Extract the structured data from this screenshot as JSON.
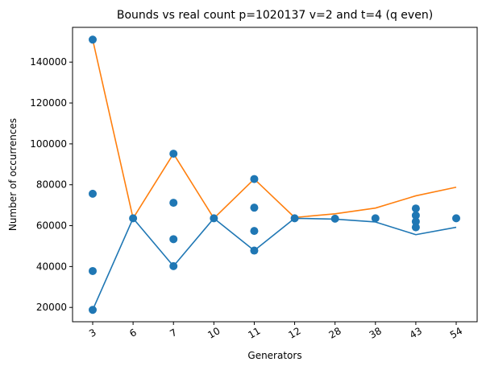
{
  "chart_data": {
    "type": "line",
    "title": "Bounds vs real count p=1020137 v=2 and t=4 (q even)",
    "xlabel": "Generators",
    "ylabel": "Number of occurrences",
    "categories": [
      "3",
      "6",
      "7",
      "10",
      "11",
      "12",
      "28",
      "38",
      "43",
      "54"
    ],
    "ylim": [
      13000,
      157000
    ],
    "yticks": [
      20000,
      40000,
      60000,
      80000,
      100000,
      120000,
      140000
    ],
    "grid": false,
    "legend": "none",
    "series": [
      {
        "role": "lower-bound",
        "color": "#1f77b4",
        "values": [
          18800,
          63600,
          40200,
          63600,
          47800,
          63600,
          63200,
          61800,
          55600,
          59200
        ]
      },
      {
        "role": "upper-bound",
        "color": "#ff7f0e",
        "values": [
          151000,
          63600,
          95200,
          63600,
          82800,
          64000,
          65800,
          68600,
          74600,
          78800
        ]
      }
    ],
    "scatter": {
      "color": "#1f77b4",
      "points": [
        {
          "x": "3",
          "y": 151000
        },
        {
          "x": "3",
          "y": 75600
        },
        {
          "x": "3",
          "y": 37800
        },
        {
          "x": "3",
          "y": 18800
        },
        {
          "x": "6",
          "y": 63600
        },
        {
          "x": "7",
          "y": 95200
        },
        {
          "x": "7",
          "y": 71200
        },
        {
          "x": "7",
          "y": 53400
        },
        {
          "x": "7",
          "y": 40200
        },
        {
          "x": "10",
          "y": 63600
        },
        {
          "x": "11",
          "y": 82800
        },
        {
          "x": "11",
          "y": 68800
        },
        {
          "x": "11",
          "y": 57400
        },
        {
          "x": "11",
          "y": 47800
        },
        {
          "x": "12",
          "y": 63600
        },
        {
          "x": "28",
          "y": 63400
        },
        {
          "x": "38",
          "y": 63600
        },
        {
          "x": "43",
          "y": 68400
        },
        {
          "x": "43",
          "y": 65000
        },
        {
          "x": "43",
          "y": 62000
        },
        {
          "x": "43",
          "y": 59200
        },
        {
          "x": "54",
          "y": 63600
        }
      ]
    }
  }
}
